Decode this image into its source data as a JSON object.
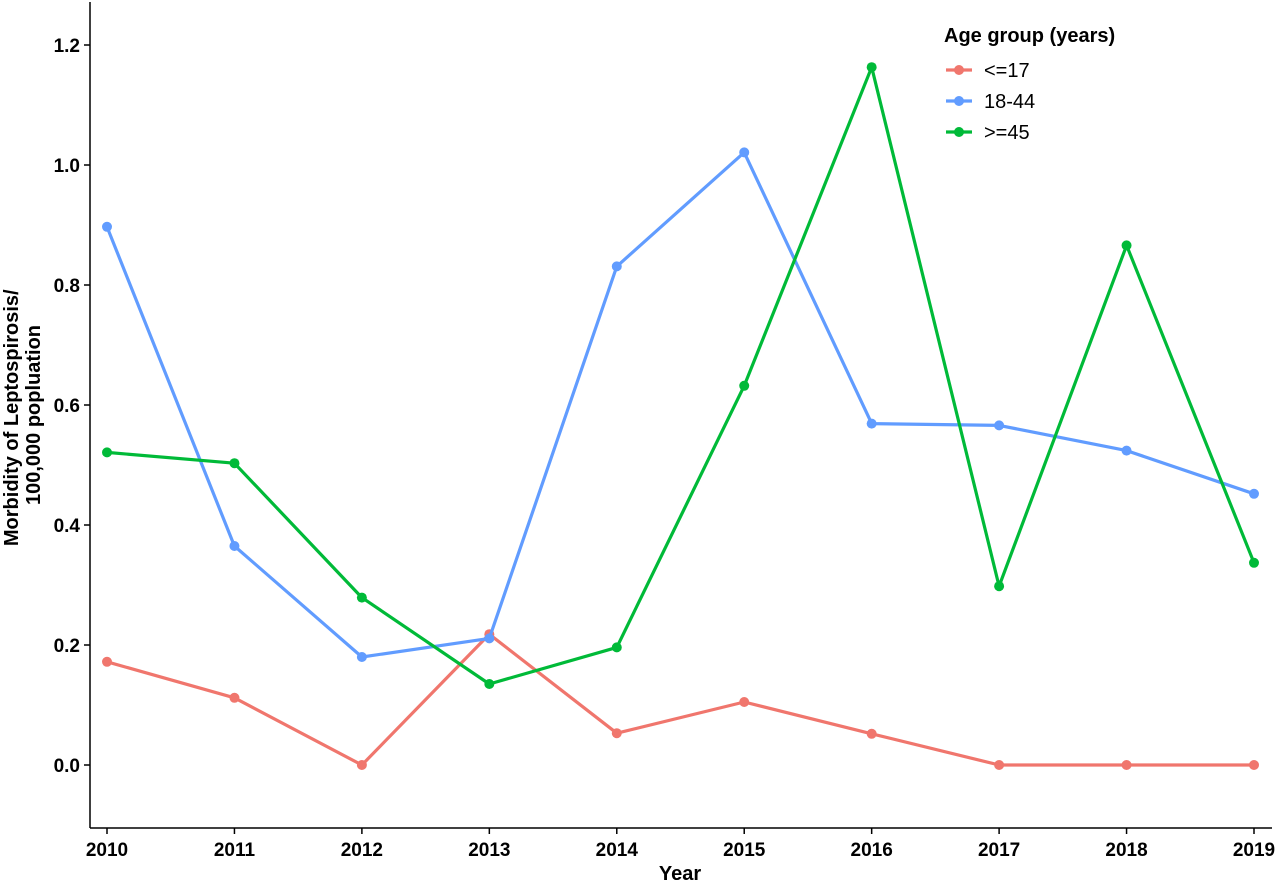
{
  "chart_data": {
    "type": "line",
    "xlabel": "Year",
    "ylabel_lines": [
      "Morbidity of Leptospirosis/",
      "100,000 popluation"
    ],
    "x": [
      "2010",
      "2011",
      "2012",
      "2013",
      "2014",
      "2015",
      "2016",
      "2017",
      "2018",
      "2019"
    ],
    "ylim": [
      -0.107,
      1.27
    ],
    "yticks": [
      "0.0",
      "0.2",
      "0.4",
      "0.6",
      "0.8",
      "1.0",
      "1.2"
    ],
    "grid": false,
    "legend": {
      "title": "Age group (years)",
      "placement": "top-right"
    },
    "series": [
      {
        "name": "<=17",
        "color": "#F0766D",
        "values": [
          0.172,
          0.112,
          0.0,
          0.218,
          0.053,
          0.105,
          0.052,
          0.0,
          0.0,
          0.0
        ]
      },
      {
        "name": "18-44",
        "color": "#619CFF",
        "values": [
          0.897,
          0.365,
          0.18,
          0.211,
          0.831,
          1.021,
          0.569,
          0.566,
          0.524,
          0.452
        ]
      },
      {
        "name": ">=45",
        "color": "#00BA38",
        "values": [
          0.521,
          0.503,
          0.279,
          0.135,
          0.196,
          0.632,
          1.163,
          0.298,
          0.866,
          0.337
        ]
      }
    ]
  }
}
